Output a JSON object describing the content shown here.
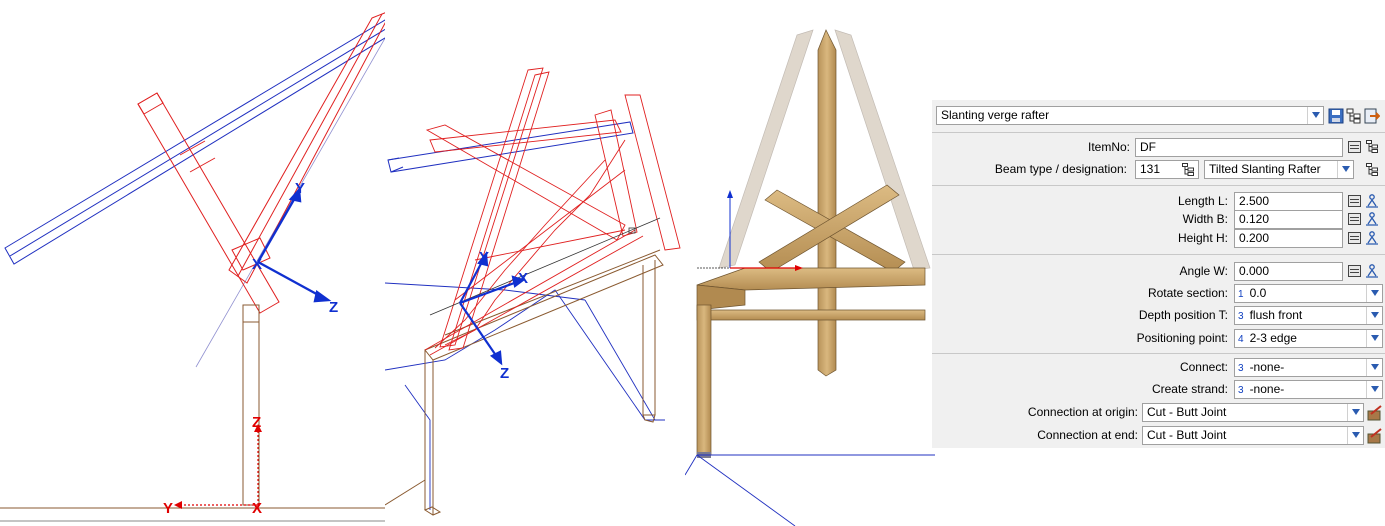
{
  "viewport_left": {
    "axis_labels": {
      "y_blue": "Y",
      "z_blue": "Z",
      "z_red": "Z",
      "y_red": "Y",
      "x_red": "X"
    }
  },
  "viewport_middle": {
    "axis_labels": {
      "y_blue": "Y",
      "x_blue": "X",
      "z_blue": "Z"
    }
  },
  "panel": {
    "header_dropdown": "Slanting verge rafter",
    "item_no_label": "ItemNo:",
    "item_no_value": "DF",
    "beam_type_label": "Beam type / designation:",
    "beam_type_code": "131",
    "beam_type_value": "Tilted Slanting Rafter",
    "length_label": "Length L:",
    "length_value": "2.500",
    "width_label": "Width B:",
    "width_value": "0.120",
    "height_label": "Height H:",
    "height_value": "0.200",
    "angle_label": "Angle W:",
    "angle_value": "0.000",
    "rotate_label": "Rotate section:",
    "rotate_code": "1",
    "rotate_value": "0.0",
    "depth_label": "Depth position T:",
    "depth_code": "3",
    "depth_value": "flush front",
    "positioning_label": "Positioning point:",
    "positioning_code": "4",
    "positioning_value": "2-3 edge",
    "connect_label": "Connect:",
    "connect_code": "3",
    "connect_value": "-none-",
    "strand_label": "Create strand:",
    "strand_code": "3",
    "strand_value": "-none-",
    "conn_origin_label": "Connection at origin:",
    "conn_origin_value": "Cut - Butt Joint",
    "conn_end_label": "Connection at end:",
    "conn_end_value": "Cut - Butt Joint"
  },
  "colors": {
    "red_wire": "#e02020",
    "blue_wire": "#2030c0",
    "brown_wire": "#8a5a30",
    "axis_blue": "#1030d0",
    "axis_red": "#e00000",
    "wood": "#c9a56a",
    "wood_dark": "#a88248",
    "panel_bg": "#f0f0f0"
  }
}
